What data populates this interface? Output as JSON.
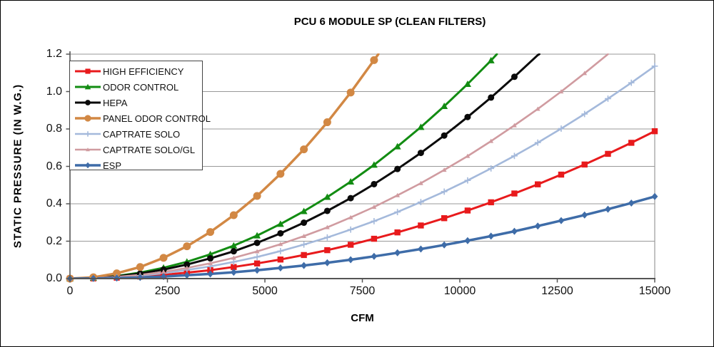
{
  "chart_data": {
    "type": "line",
    "title": "PCU 6 MODULE SP (CLEAN FILTERS)",
    "xlabel": "CFM",
    "ylabel": "STATIC PRESSURE (IN W.G.)",
    "xlim": [
      0,
      15000
    ],
    "ylim": [
      0.0,
      1.2
    ],
    "grid": "horizontal",
    "legend_position": "top-left",
    "colors": {
      "gridline": "#999999",
      "axis": "#555555",
      "background": "#ffffff",
      "frame_border": "#000000"
    },
    "x_ticks": [
      {
        "value": 0,
        "label": "0"
      },
      {
        "value": 2500,
        "label": "2500"
      },
      {
        "value": 5000,
        "label": "5000"
      },
      {
        "value": 7500,
        "label": "7500"
      },
      {
        "value": 10000,
        "label": "10000"
      },
      {
        "value": 12500,
        "label": "12500"
      },
      {
        "value": 15000,
        "label": "15000"
      }
    ],
    "y_ticks": [
      {
        "value": 0.0,
        "label": "0.0"
      },
      {
        "value": 0.2,
        "label": "0.2"
      },
      {
        "value": 0.4,
        "label": "0.4"
      },
      {
        "value": 0.6,
        "label": "0.6"
      },
      {
        "value": 0.8,
        "label": "0.8"
      },
      {
        "value": 1.0,
        "label": "1.0"
      },
      {
        "value": 1.2,
        "label": "1.2"
      }
    ],
    "x_step": 600,
    "series": [
      {
        "name": "HIGH EFFICIENCY",
        "color": "#e81a1c",
        "marker": "square",
        "line_width": 3,
        "values": [
          0,
          0.001,
          0.005,
          0.011,
          0.02,
          0.032,
          0.045,
          0.062,
          0.081,
          0.102,
          0.126,
          0.152,
          0.181,
          0.213,
          0.247,
          0.284,
          0.323,
          0.364,
          0.408,
          0.455,
          0.504,
          0.556,
          0.61,
          0.667,
          0.726,
          0.788
        ],
        "exit": null
      },
      {
        "name": "ODOR CONTROL",
        "color": "#128c12",
        "marker": "triangle",
        "line_width": 3,
        "values": [
          0,
          0.004,
          0.014,
          0.032,
          0.058,
          0.09,
          0.13,
          0.176,
          0.23,
          0.292,
          0.36,
          0.436,
          0.518,
          0.608,
          0.706,
          0.81,
          0.922,
          1.04,
          1.166
        ],
        "exit": [
          10950,
          1.2
        ]
      },
      {
        "name": "HEPA",
        "color": "#0a0a0a",
        "marker": "circle",
        "line_width": 3,
        "values": [
          0,
          0.003,
          0.012,
          0.027,
          0.048,
          0.075,
          0.108,
          0.146,
          0.191,
          0.242,
          0.299,
          0.362,
          0.43,
          0.505,
          0.586,
          0.672,
          0.765,
          0.864,
          0.968,
          1.079,
          1.195
        ],
        "exit": [
          12040,
          1.2
        ]
      },
      {
        "name": "PANEL ODOR CONTROL",
        "color": "#d28844",
        "marker": "circle-lg",
        "line_width": 3.5,
        "values": [
          0,
          0.007,
          0.028,
          0.062,
          0.111,
          0.173,
          0.249,
          0.339,
          0.442,
          0.56,
          0.691,
          0.836,
          0.995,
          1.168
        ],
        "exit": [
          7910,
          1.2
        ]
      },
      {
        "name": "CAPTRATE SOLO",
        "color": "#a4b9db",
        "marker": "plus",
        "line_width": 2.6,
        "values": [
          0,
          0.002,
          0.007,
          0.016,
          0.029,
          0.046,
          0.065,
          0.089,
          0.116,
          0.147,
          0.182,
          0.22,
          0.262,
          0.307,
          0.356,
          0.409,
          0.465,
          0.525,
          0.589,
          0.656,
          0.727,
          0.802,
          0.88,
          0.962,
          1.047,
          1.136
        ],
        "exit": null
      },
      {
        "name": "CAPTRATE SOLO/GL",
        "color": "#d09ba0",
        "marker": "triangle-sm",
        "line_width": 2.6,
        "values": [
          0,
          0.002,
          0.009,
          0.02,
          0.036,
          0.057,
          0.082,
          0.111,
          0.145,
          0.184,
          0.227,
          0.274,
          0.327,
          0.383,
          0.445,
          0.51,
          0.581,
          0.655,
          0.735,
          0.819,
          0.907,
          1.0,
          1.098,
          1.2
        ],
        "exit": null
      },
      {
        "name": "ESP",
        "color": "#3e6ca8",
        "marker": "diamond",
        "line_width": 3.5,
        "values": [
          0,
          0.001,
          0.003,
          0.006,
          0.011,
          0.018,
          0.025,
          0.034,
          0.045,
          0.057,
          0.07,
          0.085,
          0.101,
          0.119,
          0.138,
          0.158,
          0.18,
          0.203,
          0.227,
          0.253,
          0.281,
          0.31,
          0.34,
          0.371,
          0.404,
          0.439
        ],
        "exit": null
      }
    ]
  }
}
